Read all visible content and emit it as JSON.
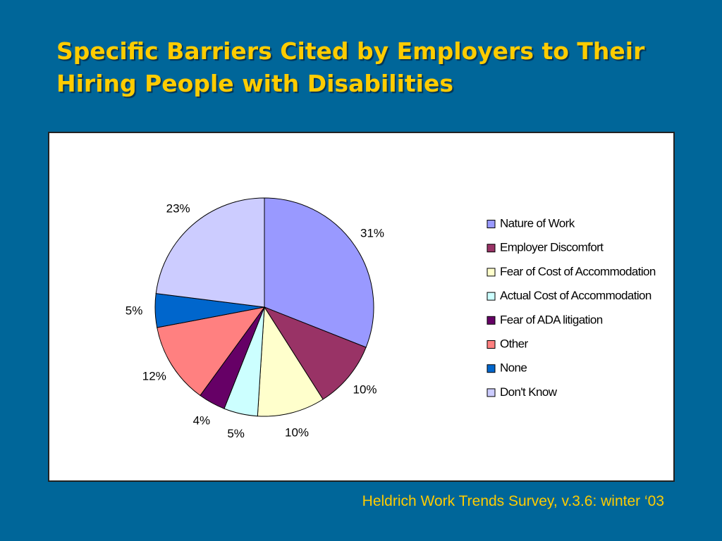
{
  "chart_data": {
    "type": "pie",
    "title": "Specific Barriers Cited by Employers to Their Hiring People with Disabilities",
    "categories": [
      "Nature of Work",
      "Employer Discomfort",
      "Fear of Cost of Accommodation",
      "Actual Cost of Accommodation",
      "Fear of ADA litigation",
      "Other",
      "None",
      "Don't Know"
    ],
    "values": [
      31,
      10,
      10,
      5,
      4,
      12,
      5,
      23
    ],
    "value_labels": [
      "31%",
      "10%",
      "10%",
      "5%",
      "4%",
      "12%",
      "5%",
      "23%"
    ],
    "colors": [
      "#9999ff",
      "#993366",
      "#ffffcc",
      "#ccffff",
      "#660066",
      "#ff8080",
      "#0066cc",
      "#ccccff"
    ],
    "legend": "right",
    "source": "Heldrich Work Trends Survey, v.3.6: winter ‘03"
  }
}
